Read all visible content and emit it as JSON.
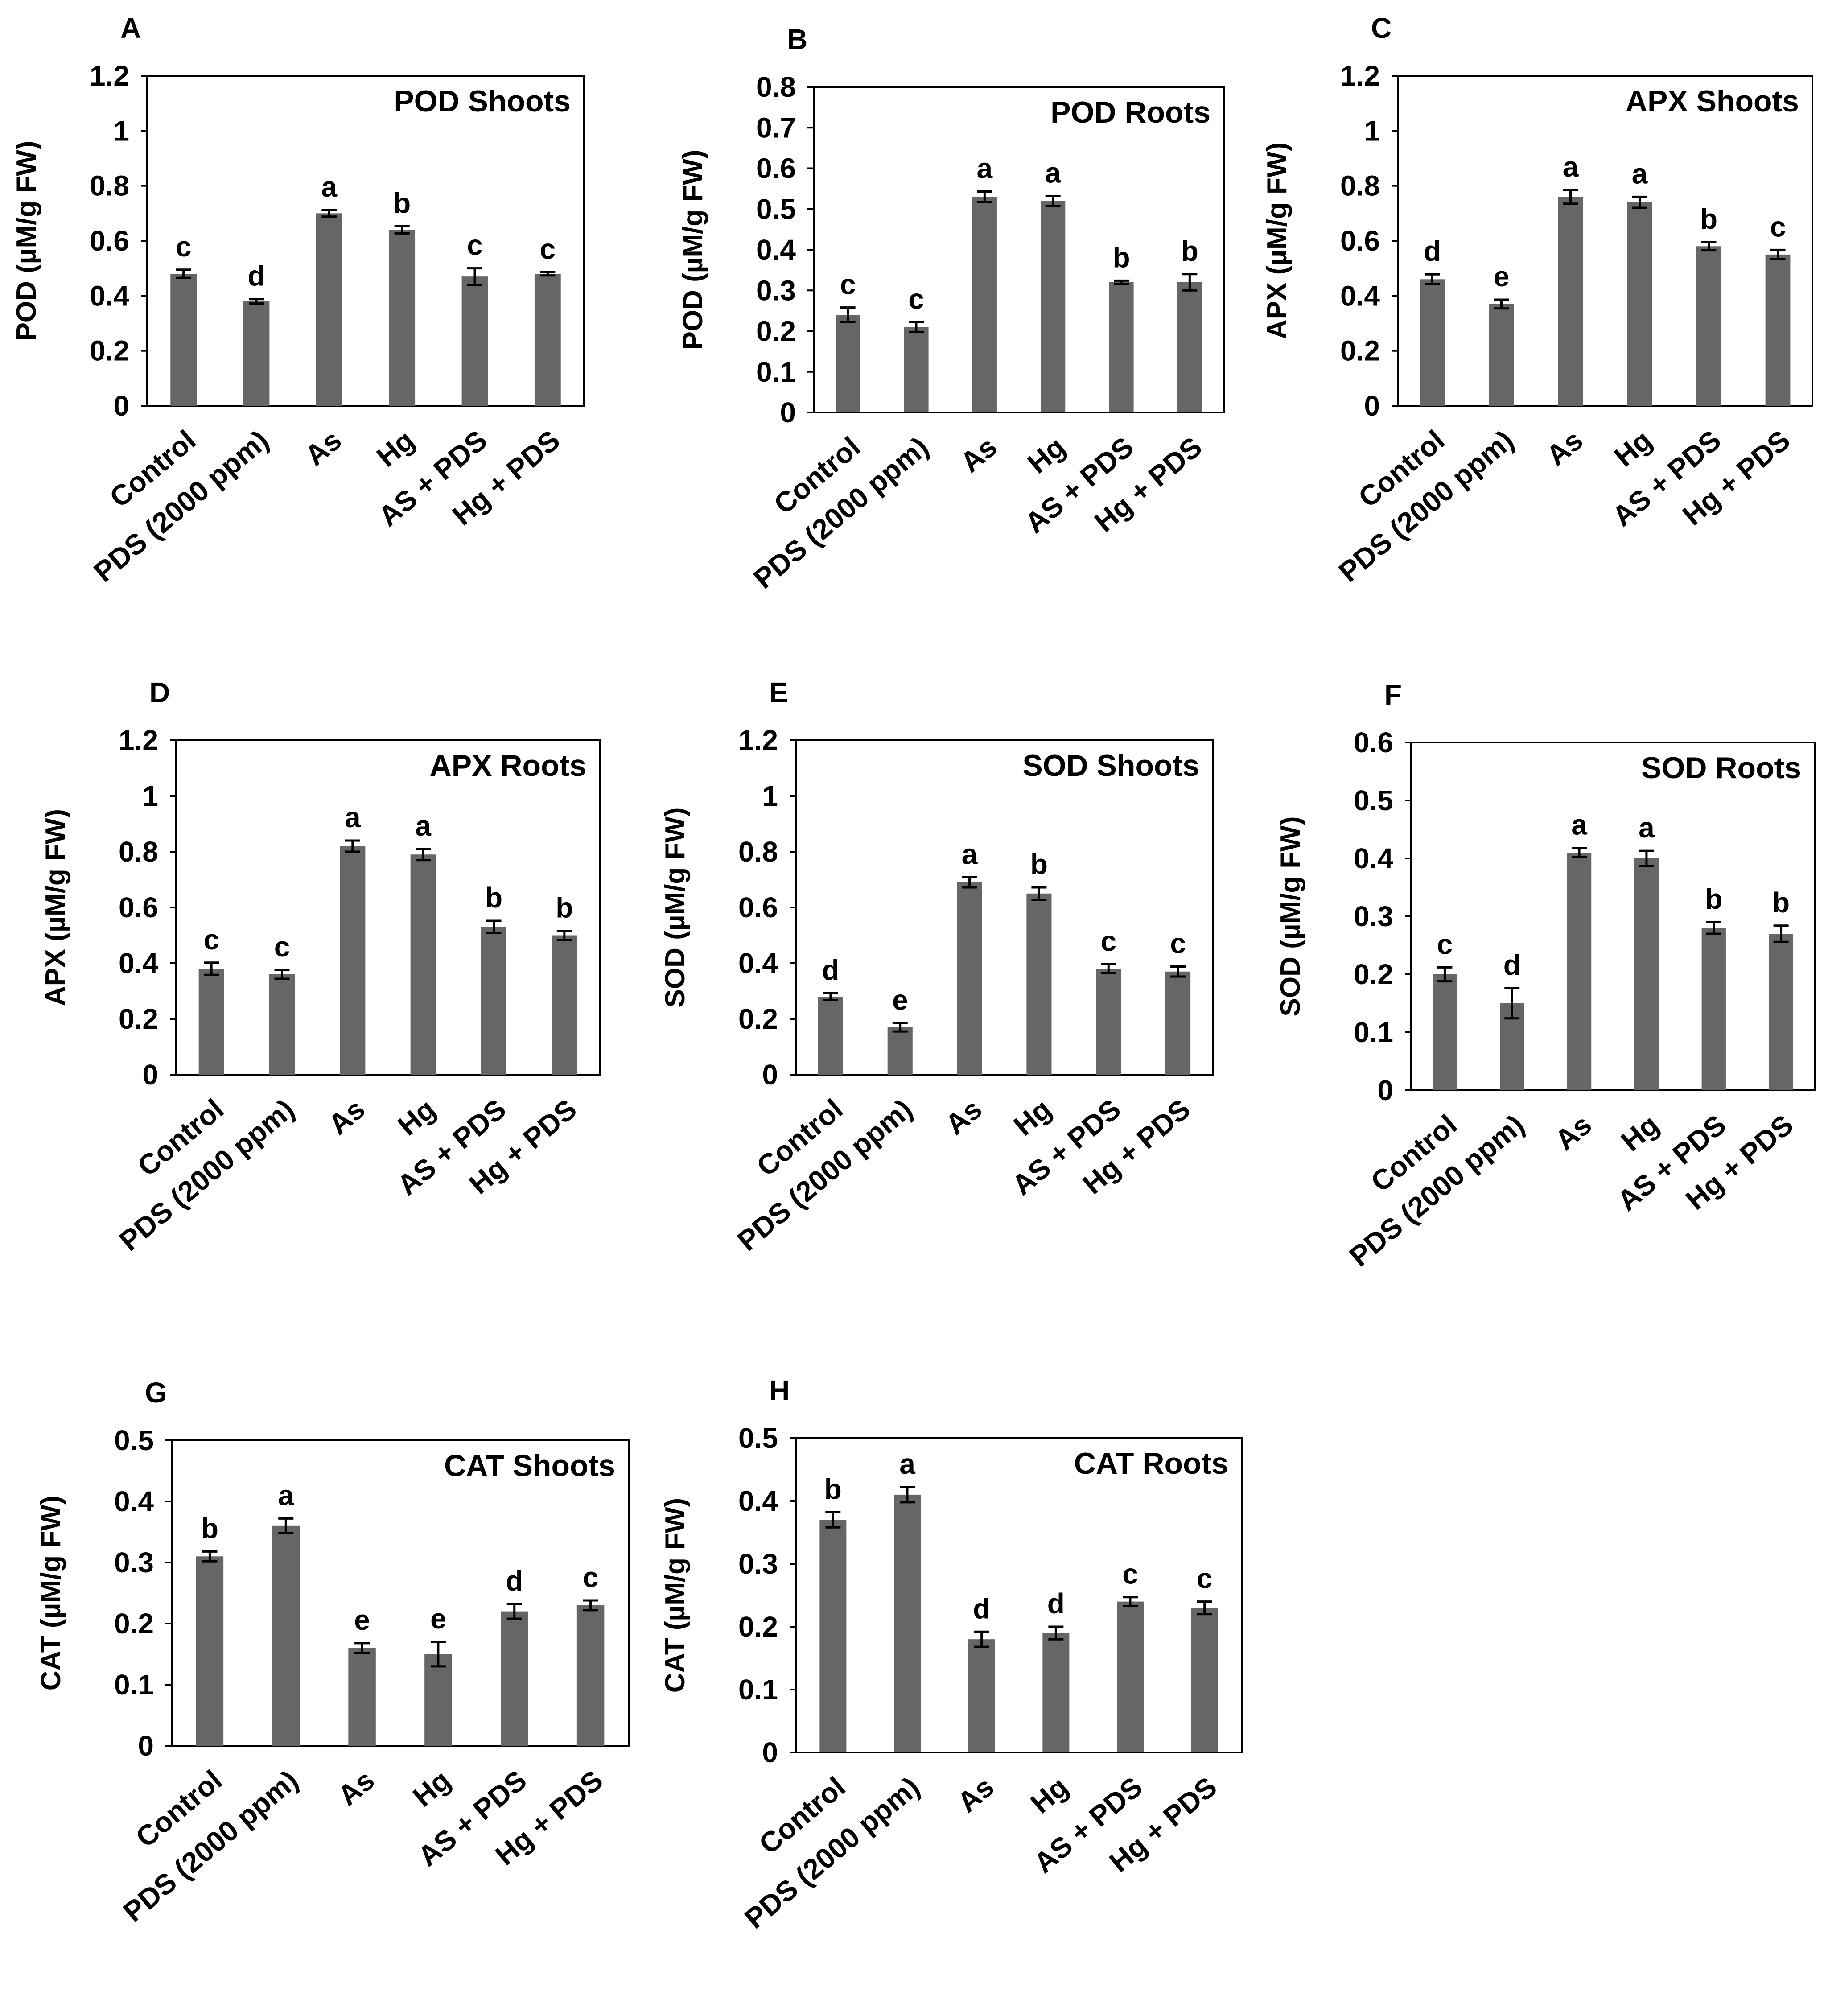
{
  "chart_data": [
    {
      "id": "A",
      "type": "bar",
      "title": "POD Shoots",
      "ylabel": "POD (µM/g FW)",
      "xlabel": "",
      "categories": [
        "Control",
        "PDS (2000 ppm)",
        "As",
        "Hg",
        "AS + PDS",
        "Hg + PDS"
      ],
      "values": [
        0.48,
        0.38,
        0.7,
        0.64,
        0.47,
        0.48
      ],
      "errors": [
        0.015,
        0.008,
        0.012,
        0.013,
        0.03,
        0.006
      ],
      "letters": [
        "c",
        "d",
        "a",
        "b",
        "c",
        "c"
      ],
      "ylim": [
        0,
        1.2
      ],
      "ticks": [
        "0",
        "0.2",
        "0.4",
        "0.6",
        "0.8",
        "1",
        "1.2"
      ],
      "grid": false
    },
    {
      "id": "B",
      "type": "bar",
      "title": "POD Roots",
      "ylabel": "POD (µM/g FW)",
      "xlabel": "",
      "categories": [
        "Control",
        "PDS (2000 ppm)",
        "As",
        "Hg",
        "AS + PDS",
        "Hg + PDS"
      ],
      "values": [
        0.24,
        0.21,
        0.53,
        0.52,
        0.32,
        0.32
      ],
      "errors": [
        0.018,
        0.012,
        0.013,
        0.012,
        0.004,
        0.02
      ],
      "letters": [
        "c",
        "c",
        "a",
        "a",
        "b",
        "b"
      ],
      "ylim": [
        0,
        0.8
      ],
      "ticks": [
        "0",
        "0.1",
        "0.2",
        "0.3",
        "0.4",
        "0.5",
        "0.6",
        "0.7",
        "0.8"
      ],
      "grid": false
    },
    {
      "id": "C",
      "type": "bar",
      "title": "APX Shoots",
      "ylabel": "APX (µM/g FW)",
      "xlabel": "",
      "categories": [
        "Control",
        "PDS (2000 ppm)",
        "As",
        "Hg",
        "AS + PDS",
        "Hg + PDS"
      ],
      "values": [
        0.46,
        0.37,
        0.76,
        0.74,
        0.58,
        0.55
      ],
      "errors": [
        0.018,
        0.016,
        0.025,
        0.02,
        0.015,
        0.017
      ],
      "letters": [
        "d",
        "e",
        "a",
        "a",
        "b",
        "c"
      ],
      "ylim": [
        0,
        1.2
      ],
      "ticks": [
        "0",
        "0.2",
        "0.4",
        "0.6",
        "0.8",
        "1",
        "1.2"
      ],
      "grid": false
    },
    {
      "id": "D",
      "type": "bar",
      "title": "APX Roots",
      "ylabel": "APX (µM/g FW)",
      "xlabel": "",
      "categories": [
        "Control",
        "PDS (2000 ppm)",
        "As",
        "Hg",
        "AS + PDS",
        "Hg + PDS"
      ],
      "values": [
        0.38,
        0.36,
        0.82,
        0.79,
        0.53,
        0.5
      ],
      "errors": [
        0.022,
        0.016,
        0.02,
        0.02,
        0.022,
        0.016
      ],
      "letters": [
        "c",
        "c",
        "a",
        "a",
        "b",
        "b"
      ],
      "ylim": [
        0,
        1.2
      ],
      "ticks": [
        "0",
        "0.2",
        "0.4",
        "0.6",
        "0.8",
        "1",
        "1.2"
      ],
      "grid": false
    },
    {
      "id": "E",
      "type": "bar",
      "title": "SOD Shoots",
      "ylabel": "SOD  (µM/g FW)",
      "xlabel": "",
      "categories": [
        "Control",
        "PDS (2000 ppm)",
        "As",
        "Hg",
        "AS + PDS",
        "Hg + PDS"
      ],
      "values": [
        0.28,
        0.17,
        0.69,
        0.65,
        0.38,
        0.37
      ],
      "errors": [
        0.012,
        0.015,
        0.018,
        0.022,
        0.016,
        0.018
      ],
      "letters": [
        "d",
        "e",
        "a",
        "b",
        "c",
        "c"
      ],
      "ylim": [
        0,
        1.2
      ],
      "ticks": [
        "0",
        "0.2",
        "0.4",
        "0.6",
        "0.8",
        "1",
        "1.2"
      ],
      "grid": false
    },
    {
      "id": "F",
      "type": "bar",
      "title": "SOD Roots",
      "ylabel": "SOD  (µM/g FW)",
      "xlabel": "",
      "categories": [
        "Control",
        "PDS (2000 ppm)",
        "As",
        "Hg",
        "AS + PDS",
        "Hg + PDS"
      ],
      "values": [
        0.2,
        0.15,
        0.41,
        0.4,
        0.28,
        0.27
      ],
      "errors": [
        0.012,
        0.026,
        0.008,
        0.013,
        0.01,
        0.014
      ],
      "letters": [
        "c",
        "d",
        "a",
        "a",
        "b",
        "b"
      ],
      "ylim": [
        0,
        0.6
      ],
      "ticks": [
        "0",
        "0.1",
        "0.2",
        "0.3",
        "0.4",
        "0.5",
        "0.6"
      ],
      "grid": false
    },
    {
      "id": "G",
      "type": "bar",
      "title": "CAT Shoots",
      "ylabel": "CAT  (µM/g FW)",
      "xlabel": "",
      "categories": [
        "Control",
        "PDS (2000 ppm)",
        "As",
        "Hg",
        "AS + PDS",
        "Hg + PDS"
      ],
      "values": [
        0.31,
        0.36,
        0.16,
        0.15,
        0.22,
        0.23
      ],
      "errors": [
        0.008,
        0.012,
        0.008,
        0.02,
        0.012,
        0.008
      ],
      "letters": [
        "b",
        "a",
        "e",
        "e",
        "d",
        "c"
      ],
      "ylim": [
        0,
        0.5
      ],
      "ticks": [
        "0",
        "0.1",
        "0.2",
        "0.3",
        "0.4",
        "0.5"
      ],
      "grid": false
    },
    {
      "id": "H",
      "type": "bar",
      "title": "CAT Roots",
      "ylabel": "CAT  (µM/g FW)",
      "xlabel": "",
      "categories": [
        "Control",
        "PDS (2000 ppm)",
        "As",
        "Hg",
        "AS + PDS",
        "Hg + PDS"
      ],
      "values": [
        0.37,
        0.41,
        0.18,
        0.19,
        0.24,
        0.23
      ],
      "errors": [
        0.012,
        0.012,
        0.012,
        0.01,
        0.007,
        0.01
      ],
      "letters": [
        "b",
        "a",
        "d",
        "d",
        "c",
        "c"
      ],
      "ylim": [
        0,
        0.5
      ],
      "ticks": [
        "0",
        "0.1",
        "0.2",
        "0.3",
        "0.4",
        "0.5"
      ],
      "grid": false
    }
  ],
  "colors": {
    "bar": "#666666",
    "axis": "#000000",
    "text": "#000000",
    "background": "#ffffff"
  }
}
